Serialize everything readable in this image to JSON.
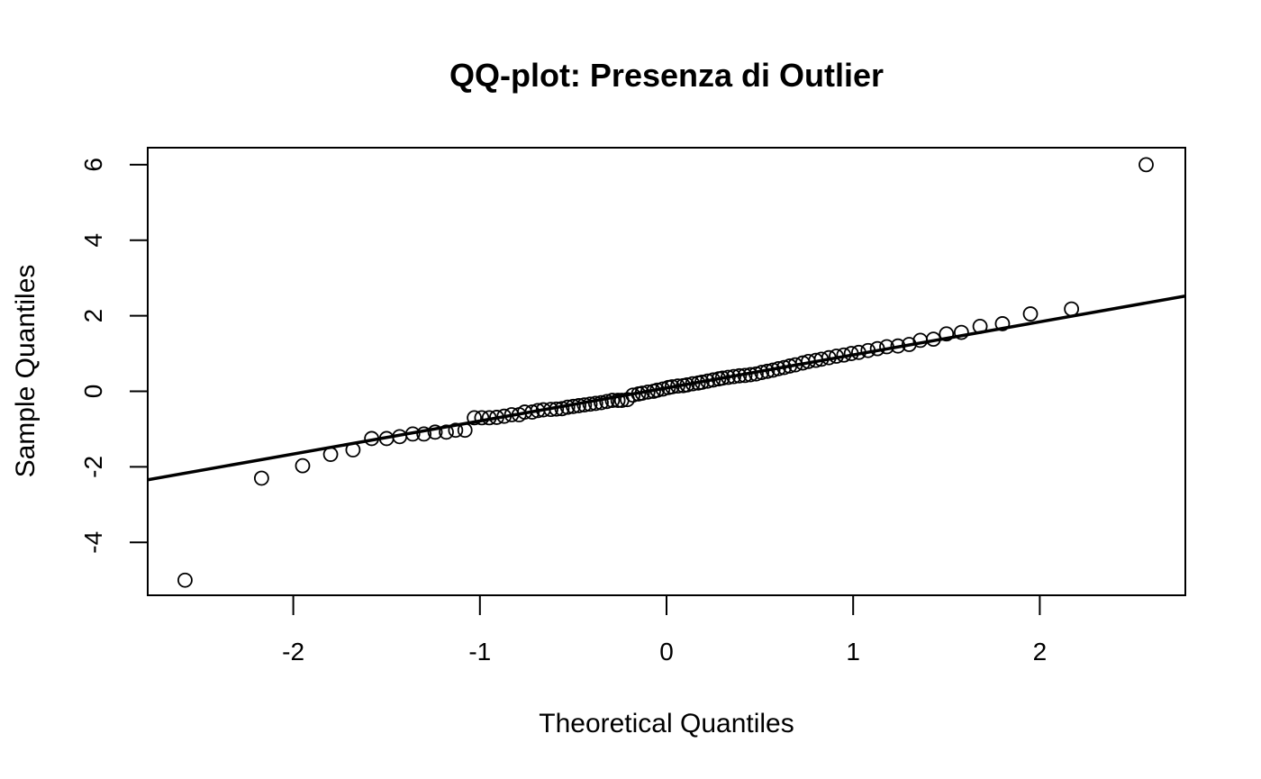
{
  "chart_data": {
    "type": "scatter",
    "title": "QQ-plot: Presenza di Outlier",
    "xlabel": "Theoretical Quantiles",
    "ylabel": "Sample Quantiles",
    "xlim": [
      -2.78,
      2.78
    ],
    "ylim": [
      -5.4,
      6.45
    ],
    "x_ticks": [
      -2,
      -1,
      0,
      1,
      2
    ],
    "x_tick_labels": [
      "-2",
      "-1",
      "0",
      "1",
      "2"
    ],
    "y_ticks": [
      -4,
      -2,
      0,
      2,
      4,
      6
    ],
    "y_tick_labels": [
      "-4",
      "-2",
      "0",
      "2",
      "4",
      "6"
    ],
    "grid": false,
    "reference_line": {
      "intercept": 0.09,
      "slope": 0.875
    },
    "series": [
      {
        "points": [
          [
            -2.58,
            -5.0
          ],
          [
            -2.17,
            -2.3
          ],
          [
            -1.95,
            -1.97
          ],
          [
            -1.8,
            -1.67
          ],
          [
            -1.68,
            -1.55
          ],
          [
            -1.58,
            -1.25
          ],
          [
            -1.5,
            -1.25
          ],
          [
            -1.43,
            -1.2
          ],
          [
            -1.36,
            -1.13
          ],
          [
            -1.3,
            -1.13
          ],
          [
            -1.24,
            -1.08
          ],
          [
            -1.18,
            -1.08
          ],
          [
            -1.13,
            -1.03
          ],
          [
            -1.08,
            -1.03
          ],
          [
            -1.03,
            -0.7
          ],
          [
            -0.99,
            -0.7
          ],
          [
            -0.95,
            -0.7
          ],
          [
            -0.91,
            -0.69
          ],
          [
            -0.87,
            -0.66
          ],
          [
            -0.83,
            -0.62
          ],
          [
            -0.79,
            -0.62
          ],
          [
            -0.76,
            -0.55
          ],
          [
            -0.72,
            -0.55
          ],
          [
            -0.69,
            -0.51
          ],
          [
            -0.66,
            -0.49
          ],
          [
            -0.62,
            -0.48
          ],
          [
            -0.59,
            -0.47
          ],
          [
            -0.56,
            -0.46
          ],
          [
            -0.53,
            -0.42
          ],
          [
            -0.5,
            -0.4
          ],
          [
            -0.47,
            -0.38
          ],
          [
            -0.44,
            -0.36
          ],
          [
            -0.41,
            -0.34
          ],
          [
            -0.38,
            -0.32
          ],
          [
            -0.35,
            -0.3
          ],
          [
            -0.32,
            -0.27
          ],
          [
            -0.29,
            -0.24
          ],
          [
            -0.26,
            -0.24
          ],
          [
            -0.24,
            -0.24
          ],
          [
            -0.21,
            -0.22
          ],
          [
            -0.18,
            -0.1
          ],
          [
            -0.15,
            -0.07
          ],
          [
            -0.13,
            -0.05
          ],
          [
            -0.1,
            -0.02
          ],
          [
            -0.07,
            0.0
          ],
          [
            -0.05,
            0.03
          ],
          [
            -0.02,
            0.06
          ],
          [
            0.01,
            0.1
          ],
          [
            0.03,
            0.12
          ],
          [
            0.06,
            0.14
          ],
          [
            0.09,
            0.15
          ],
          [
            0.11,
            0.17
          ],
          [
            0.14,
            0.2
          ],
          [
            0.17,
            0.22
          ],
          [
            0.19,
            0.24
          ],
          [
            0.22,
            0.27
          ],
          [
            0.25,
            0.3
          ],
          [
            0.28,
            0.33
          ],
          [
            0.3,
            0.35
          ],
          [
            0.33,
            0.37
          ],
          [
            0.36,
            0.39
          ],
          [
            0.39,
            0.41
          ],
          [
            0.42,
            0.42
          ],
          [
            0.45,
            0.44
          ],
          [
            0.48,
            0.46
          ],
          [
            0.51,
            0.5
          ],
          [
            0.54,
            0.53
          ],
          [
            0.57,
            0.56
          ],
          [
            0.6,
            0.6
          ],
          [
            0.63,
            0.63
          ],
          [
            0.66,
            0.67
          ],
          [
            0.69,
            0.7
          ],
          [
            0.73,
            0.75
          ],
          [
            0.76,
            0.79
          ],
          [
            0.8,
            0.82
          ],
          [
            0.83,
            0.85
          ],
          [
            0.87,
            0.89
          ],
          [
            0.91,
            0.93
          ],
          [
            0.95,
            0.96
          ],
          [
            0.99,
            1.0
          ],
          [
            1.03,
            1.03
          ],
          [
            1.08,
            1.08
          ],
          [
            1.13,
            1.13
          ],
          [
            1.18,
            1.18
          ],
          [
            1.24,
            1.2
          ],
          [
            1.3,
            1.24
          ],
          [
            1.36,
            1.35
          ],
          [
            1.43,
            1.38
          ],
          [
            1.5,
            1.52
          ],
          [
            1.58,
            1.56
          ],
          [
            1.68,
            1.72
          ],
          [
            1.8,
            1.79
          ],
          [
            1.95,
            2.05
          ],
          [
            2.17,
            2.18
          ],
          [
            2.57,
            6.0
          ]
        ]
      }
    ]
  }
}
